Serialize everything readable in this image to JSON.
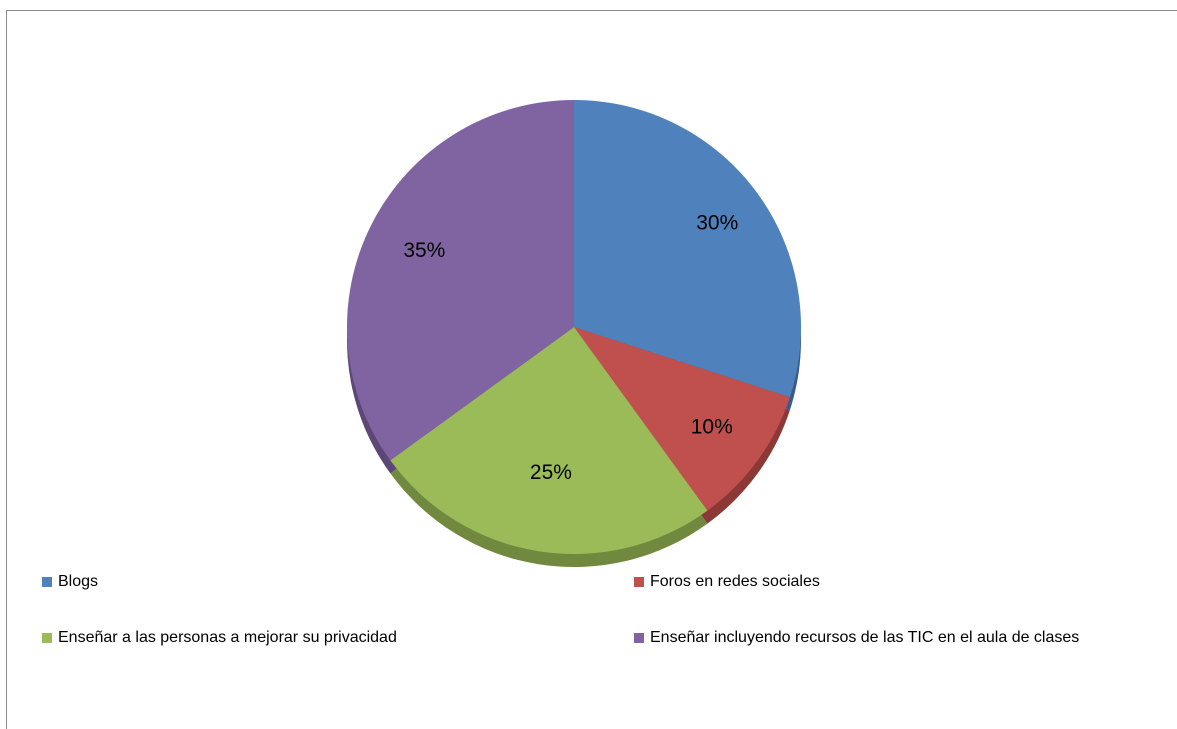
{
  "chart_data": {
    "type": "pie",
    "title": "",
    "categories": [
      "Blogs",
      "Foros en redes sociales",
      "Enseñar a las personas a mejorar su privacidad",
      "Enseñar incluyendo recursos de las TIC en el aula de clases"
    ],
    "values": [
      30,
      10,
      25,
      35
    ],
    "labels": [
      "30%",
      "10%",
      "25%",
      "35%"
    ],
    "colors": [
      "#4f81bd",
      "#c0504d",
      "#9bbb59",
      "#8064a2"
    ],
    "shadow_colors": [
      "#385d8a",
      "#8c3836",
      "#71893f",
      "#5c4776"
    ],
    "legend_position": "bottom",
    "start_angle_deg": 0,
    "direction": "clockwise",
    "style": "3d"
  },
  "legend": {
    "items": [
      {
        "label": "Blogs",
        "color": "#4f81bd"
      },
      {
        "label": "Foros en redes sociales",
        "color": "#c0504d"
      },
      {
        "label": "Enseñar a las personas a mejorar su privacidad",
        "color": "#9bbb59"
      },
      {
        "label": "Enseñar incluyendo recursos de las TIC en el aula de clases",
        "color": "#8064a2"
      }
    ]
  }
}
